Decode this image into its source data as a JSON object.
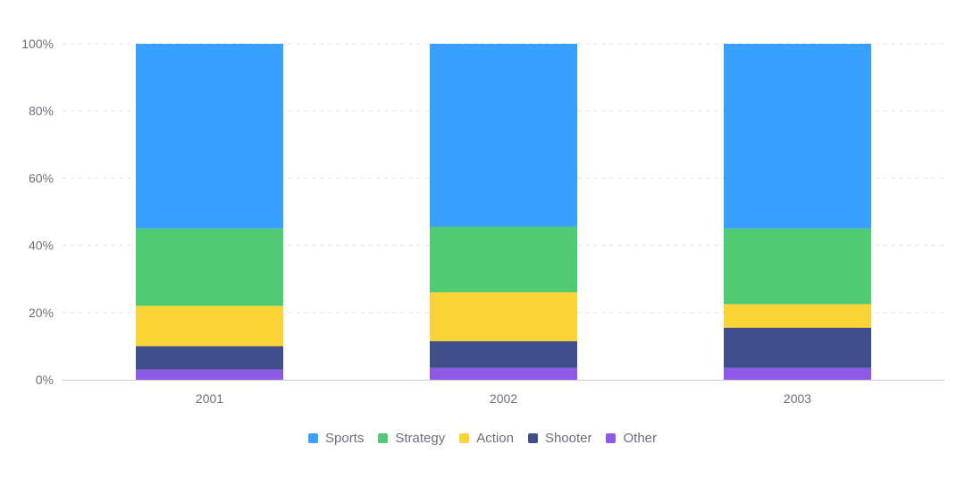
{
  "chart_data": {
    "type": "bar",
    "stacked": true,
    "categories": [
      "2001",
      "2002",
      "2003"
    ],
    "series": [
      {
        "name": "Other",
        "color": "#8c5ae6",
        "values": [
          3,
          3.5,
          3.5
        ]
      },
      {
        "name": "Shooter",
        "color": "#404e8c",
        "values": [
          7,
          8,
          12
        ]
      },
      {
        "name": "Action",
        "color": "#fad335",
        "values": [
          12,
          14.5,
          7
        ]
      },
      {
        "name": "Strategy",
        "color": "#50cb74",
        "values": [
          23,
          19.5,
          22.5
        ]
      },
      {
        "name": "Sports",
        "color": "#3aa0ff",
        "values": [
          55,
          54.5,
          55
        ]
      }
    ],
    "legend_order": [
      "Sports",
      "Strategy",
      "Action",
      "Shooter",
      "Other"
    ],
    "yticks": [
      "0%",
      "20%",
      "40%",
      "60%",
      "80%",
      "100%"
    ],
    "ylim": [
      0,
      100
    ],
    "grid": true,
    "legend_position": "bottom"
  }
}
